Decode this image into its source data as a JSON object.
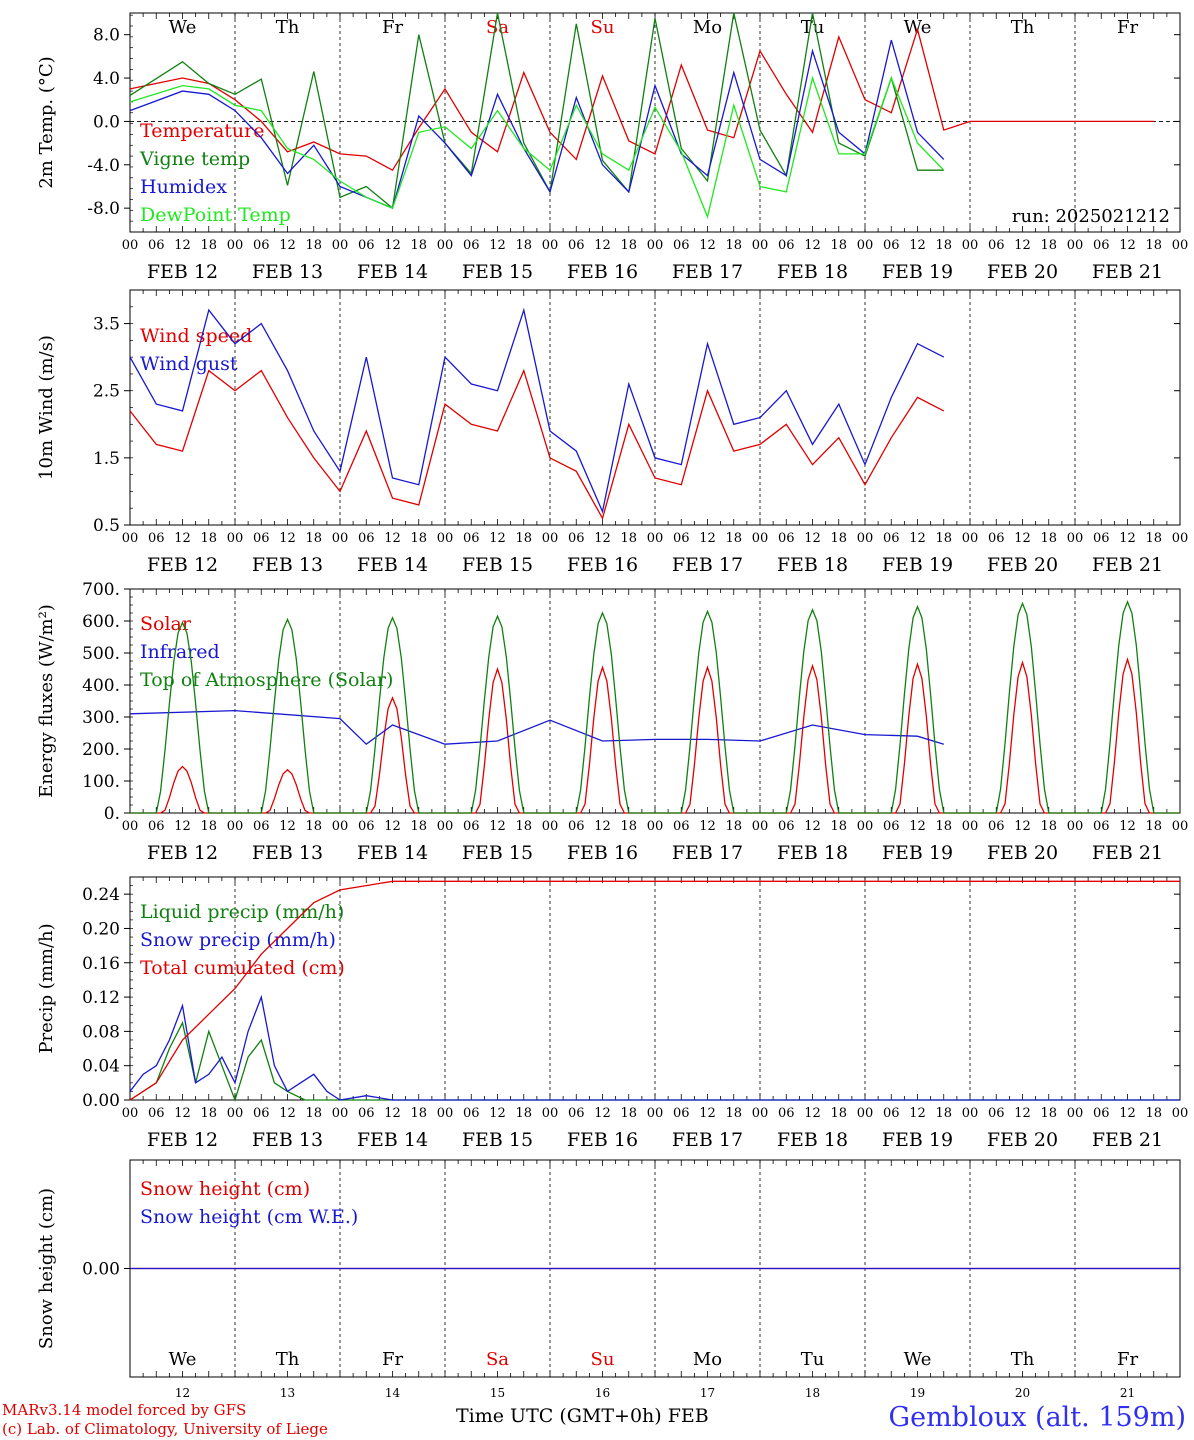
{
  "chart_data": [
    {
      "type": "line",
      "ylabel": "2m Temp. (°C)",
      "ylim": [
        -10.2,
        10.0
      ],
      "yticks": [
        "8.0",
        "4.0",
        "0.0",
        "-4.0",
        "-8.0"
      ],
      "ytick_values": [
        8,
        4,
        0,
        -4,
        -8
      ],
      "zero_line": true,
      "day_labels": [
        "We",
        "Th",
        "Fr",
        "Sa",
        "Su",
        "Mo",
        "Tu",
        "We",
        "Th",
        "Fr"
      ],
      "weekend_days": [
        3,
        4
      ],
      "run_label": "run: 2025021212",
      "x_unit": "hours from 2025-02-12 00 UTC",
      "series": [
        {
          "name": "Temperature",
          "color": "#e00000",
          "x": [
            0,
            12,
            18,
            24,
            30,
            36,
            42,
            48,
            54,
            60,
            66,
            72,
            78,
            84,
            90,
            96,
            102,
            108,
            114,
            120,
            126,
            132,
            138,
            144,
            150,
            156,
            162,
            168,
            174,
            180,
            186,
            192,
            198,
            204,
            210,
            216,
            222,
            228,
            234
          ],
          "values": [
            3.0,
            4.0,
            3.5,
            2.0,
            0.0,
            -2.8,
            -1.9,
            -3.0,
            -3.2,
            -4.5,
            -0.6,
            3.0,
            -1.0,
            -2.8,
            4.5,
            -1.0,
            -3.5,
            4.2,
            -1.8,
            -3.0,
            5.2,
            -0.8,
            -1.5,
            6.5,
            2.5,
            -1.0,
            7.8,
            2.0,
            0.8,
            8.5,
            -0.8,
            0.0,
            0.0,
            0.0,
            0.0,
            0.0,
            0.0,
            0.0,
            0.0
          ]
        },
        {
          "name": "Vigne temp",
          "color": "#108010",
          "x": [
            0,
            12,
            18,
            24,
            30,
            36,
            42,
            48,
            54,
            60,
            66,
            72,
            78,
            84,
            90,
            96,
            102,
            108,
            114,
            120,
            126,
            132,
            138,
            144,
            150,
            156,
            162,
            168,
            174,
            180,
            186
          ],
          "values": [
            2.4,
            5.5,
            3.5,
            2.5,
            3.9,
            -5.9,
            4.6,
            -7.0,
            -6.0,
            -8.0,
            8.0,
            -2.0,
            -4.8,
            10.0,
            -2.0,
            -6.5,
            9.0,
            -3.6,
            -6.5,
            9.5,
            -2.5,
            -5.5,
            10.0,
            -0.8,
            -5.0,
            10.0,
            -2.0,
            -3.2,
            4.0,
            -4.5,
            -4.5
          ]
        },
        {
          "name": "Humidex",
          "color": "#1818d0",
          "x": [
            0,
            12,
            18,
            24,
            30,
            36,
            42,
            48,
            54,
            60,
            66,
            72,
            78,
            84,
            90,
            96,
            102,
            108,
            114,
            120,
            126,
            132,
            138,
            144,
            150,
            156,
            162,
            168,
            174,
            180,
            186
          ],
          "values": [
            1.0,
            2.8,
            2.5,
            1.0,
            -1.5,
            -4.8,
            -2.2,
            -6.0,
            -7.0,
            -8.0,
            0.5,
            -2.0,
            -5.0,
            2.5,
            -2.5,
            -6.5,
            2.2,
            -4.0,
            -6.5,
            3.3,
            -3.0,
            -5.0,
            4.5,
            -3.5,
            -5.0,
            6.5,
            -1.0,
            -3.0,
            7.5,
            -1.0,
            -3.5
          ]
        },
        {
          "name": "DewPoint Temp",
          "color": "#20e820",
          "x": [
            0,
            12,
            18,
            24,
            30,
            36,
            42,
            48,
            54,
            60,
            66,
            72,
            78,
            84,
            90,
            96,
            102,
            108,
            114,
            120,
            126,
            132,
            138,
            144,
            150,
            156,
            162,
            168,
            174,
            180,
            186
          ],
          "values": [
            1.8,
            3.3,
            3.0,
            1.5,
            1.0,
            -2.5,
            -3.5,
            -5.5,
            -7.0,
            -8.0,
            -1.0,
            -0.5,
            -2.5,
            1.0,
            -2.5,
            -4.5,
            1.5,
            -3.0,
            -4.5,
            1.3,
            -2.8,
            -8.8,
            1.5,
            -6.0,
            -6.5,
            4.0,
            -3.0,
            -3.0,
            4.0,
            -2.0,
            -4.5
          ]
        }
      ]
    },
    {
      "type": "line",
      "ylabel": "10m Wind (m/s)",
      "ylim": [
        0.5,
        4.0
      ],
      "yticks": [
        "3.5",
        "2.5",
        "1.5",
        "0.5"
      ],
      "ytick_values": [
        3.5,
        2.5,
        1.5,
        0.5
      ],
      "series": [
        {
          "name": "Wind speed",
          "color": "#e00000",
          "x": [
            0,
            6,
            12,
            18,
            24,
            30,
            36,
            42,
            48,
            54,
            60,
            66,
            72,
            78,
            84,
            90,
            96,
            102,
            108,
            114,
            120,
            126,
            132,
            138,
            144,
            150,
            156,
            162,
            168,
            174,
            180,
            186
          ],
          "values": [
            2.2,
            1.7,
            1.6,
            2.8,
            2.5,
            2.8,
            2.1,
            1.5,
            1.0,
            1.9,
            0.9,
            0.8,
            2.3,
            2.0,
            1.9,
            2.8,
            1.5,
            1.3,
            0.6,
            2.0,
            1.2,
            1.1,
            2.5,
            1.6,
            1.7,
            2.0,
            1.4,
            1.8,
            1.1,
            1.8,
            2.4,
            2.2
          ]
        },
        {
          "name": "Wind gust",
          "color": "#1818d0",
          "x": [
            0,
            6,
            12,
            18,
            24,
            30,
            36,
            42,
            48,
            54,
            60,
            66,
            72,
            78,
            84,
            90,
            96,
            102,
            108,
            114,
            120,
            126,
            132,
            138,
            144,
            150,
            156,
            162,
            168,
            174,
            180,
            186
          ],
          "values": [
            3.0,
            2.3,
            2.2,
            3.7,
            3.2,
            3.5,
            2.8,
            1.9,
            1.3,
            3.0,
            1.2,
            1.1,
            3.0,
            2.6,
            2.5,
            3.7,
            1.9,
            1.6,
            0.7,
            2.6,
            1.5,
            1.4,
            3.2,
            2.0,
            2.1,
            2.5,
            1.7,
            2.3,
            1.4,
            2.4,
            3.2,
            3.0
          ]
        }
      ]
    },
    {
      "type": "line",
      "ylabel": "Energy fluxes (W/m²)",
      "ylim": [
        0,
        700
      ],
      "yticks": [
        "700.",
        "600.",
        "500.",
        "400.",
        "300.",
        "200.",
        "100.",
        "0."
      ],
      "ytick_values": [
        700,
        600,
        500,
        400,
        300,
        200,
        100,
        0
      ],
      "series": [
        {
          "name": "Solar",
          "color": "#e00000",
          "daily_peak_hour": 12,
          "daily_peaks": [
            145,
            135,
            360,
            450,
            455,
            455,
            460,
            465,
            470,
            480
          ]
        },
        {
          "name": "Infrared",
          "color": "#1818d0",
          "x": [
            0,
            24,
            48,
            54,
            60,
            72,
            84,
            96,
            108,
            120,
            132,
            144,
            156,
            168,
            180,
            186
          ],
          "values": [
            310,
            320,
            295,
            215,
            275,
            215,
            225,
            290,
            225,
            230,
            230,
            225,
            275,
            245,
            240,
            215
          ]
        },
        {
          "name": "Top of Atmosphere (Solar)",
          "color": "#108010",
          "daily_peak_hour": 12,
          "daily_peaks": [
            595,
            605,
            610,
            615,
            625,
            630,
            635,
            645,
            655,
            660
          ]
        }
      ]
    },
    {
      "type": "line",
      "ylabel": "Precip (mm/h)",
      "ylim": [
        0,
        0.26
      ],
      "yticks": [
        "0.24",
        "0.20",
        "0.16",
        "0.12",
        "0.08",
        "0.04",
        "0.00"
      ],
      "ytick_values": [
        0.24,
        0.2,
        0.16,
        0.12,
        0.08,
        0.04,
        0.0
      ],
      "series": [
        {
          "name": "Liquid precip (mm/h)",
          "color": "#108010",
          "x": [
            0,
            6,
            9,
            12,
            15,
            18,
            21,
            24,
            27,
            30,
            33,
            36,
            40,
            48,
            240
          ],
          "values": [
            0.0,
            0.02,
            0.06,
            0.09,
            0.02,
            0.08,
            0.04,
            0.0,
            0.05,
            0.07,
            0.02,
            0.01,
            0.0,
            0.0,
            0.0
          ]
        },
        {
          "name": "Snow precip (mm/h)",
          "color": "#1818d0",
          "x": [
            0,
            3,
            6,
            9,
            12,
            15,
            18,
            21,
            24,
            27,
            30,
            33,
            36,
            39,
            42,
            45,
            48,
            54,
            60,
            240
          ],
          "values": [
            0.01,
            0.03,
            0.04,
            0.07,
            0.11,
            0.02,
            0.03,
            0.05,
            0.02,
            0.08,
            0.12,
            0.04,
            0.01,
            0.02,
            0.03,
            0.01,
            0.0,
            0.005,
            0.0,
            0.0
          ]
        },
        {
          "name": "Total cumulated (cm)",
          "color": "#e00000",
          "x": [
            0,
            6,
            12,
            18,
            24,
            30,
            36,
            42,
            48,
            54,
            60,
            66,
            72,
            240
          ],
          "values": [
            0.0,
            0.02,
            0.07,
            0.1,
            0.13,
            0.17,
            0.2,
            0.23,
            0.245,
            0.25,
            0.255,
            0.255,
            0.255,
            0.255
          ]
        }
      ]
    },
    {
      "type": "line",
      "ylabel": "Snow height (cm)",
      "ylim": [
        -0.1,
        0.1
      ],
      "yticks": [
        "0.00"
      ],
      "ytick_values": [
        0.0
      ],
      "series": [
        {
          "name": "Snow height (cm)",
          "color": "#e00000",
          "x": [
            0,
            240
          ],
          "values": [
            0.0,
            0.0
          ]
        },
        {
          "name": "Snow height (cm W.E.)",
          "color": "#1818d0",
          "x": [
            0,
            240
          ],
          "values": [
            0.0,
            0.0
          ]
        }
      ]
    }
  ],
  "x_axis": {
    "hour_labels": [
      "00",
      "06",
      "12",
      "18"
    ],
    "date_labels": [
      "FEB 12",
      "FEB 13",
      "FEB 14",
      "FEB 15",
      "FEB 16",
      "FEB 17",
      "FEB 18",
      "FEB 19",
      "FEB 20",
      "FEB 21"
    ],
    "bottom_day_names": [
      "We",
      "Th",
      "Fr",
      "Sa",
      "Su",
      "Mo",
      "Tu",
      "We",
      "Th",
      "Fr"
    ],
    "bottom_day_numbers": [
      "12",
      "13",
      "14",
      "15",
      "16",
      "17",
      "18",
      "19",
      "20",
      "21"
    ]
  },
  "colors": {
    "weekend": "#e00000",
    "grid": "#000000"
  },
  "footer": {
    "model_line1": "MARv3.14 model forced by GFS",
    "model_line2": "(c) Lab. of Climatology, University of Liege",
    "time_label": "Time UTC (GMT+0h)",
    "month_label": "FEB",
    "station": "Gembloux (alt. 159m)"
  }
}
